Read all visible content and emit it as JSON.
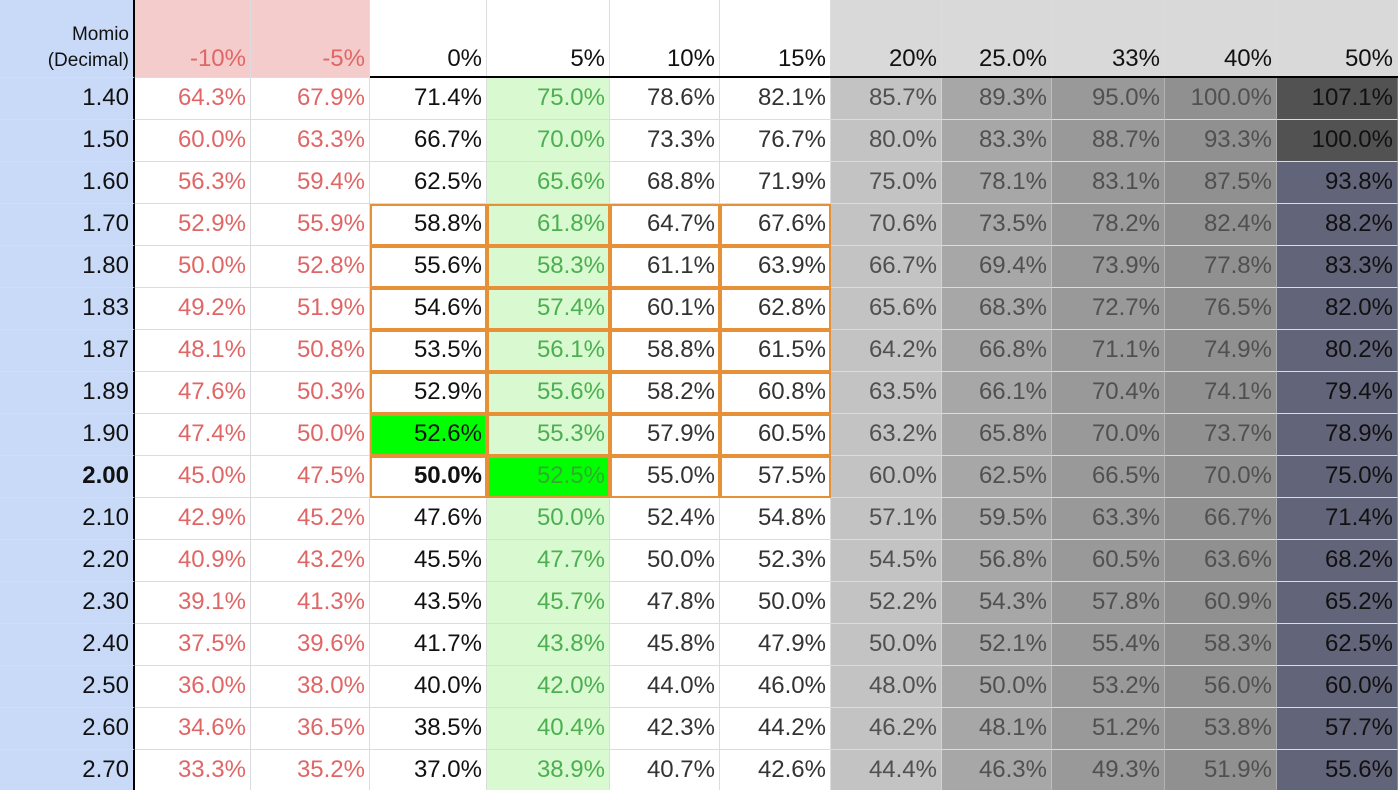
{
  "table": {
    "row_header_title": "Momio\n(Decimal)",
    "column_headers": [
      "-10%",
      "-5%",
      "0%",
      "5%",
      "10%",
      "15%",
      "20%",
      "25.0%",
      "33%",
      "40%",
      "50%"
    ],
    "rows": [
      {
        "odds": "1.40",
        "values": [
          "64.3%",
          "67.9%",
          "71.4%",
          "75.0%",
          "78.6%",
          "82.1%",
          "85.7%",
          "89.3%",
          "95.0%",
          "100.0%",
          "107.1%"
        ]
      },
      {
        "odds": "1.50",
        "values": [
          "60.0%",
          "63.3%",
          "66.7%",
          "70.0%",
          "73.3%",
          "76.7%",
          "80.0%",
          "83.3%",
          "88.7%",
          "93.3%",
          "100.0%"
        ]
      },
      {
        "odds": "1.60",
        "values": [
          "56.3%",
          "59.4%",
          "62.5%",
          "65.6%",
          "68.8%",
          "71.9%",
          "75.0%",
          "78.1%",
          "83.1%",
          "87.5%",
          "93.8%"
        ]
      },
      {
        "odds": "1.70",
        "values": [
          "52.9%",
          "55.9%",
          "58.8%",
          "61.8%",
          "64.7%",
          "67.6%",
          "70.6%",
          "73.5%",
          "78.2%",
          "82.4%",
          "88.2%"
        ]
      },
      {
        "odds": "1.80",
        "values": [
          "50.0%",
          "52.8%",
          "55.6%",
          "58.3%",
          "61.1%",
          "63.9%",
          "66.7%",
          "69.4%",
          "73.9%",
          "77.8%",
          "83.3%"
        ]
      },
      {
        "odds": "1.83",
        "values": [
          "49.2%",
          "51.9%",
          "54.6%",
          "57.4%",
          "60.1%",
          "62.8%",
          "65.6%",
          "68.3%",
          "72.7%",
          "76.5%",
          "82.0%"
        ]
      },
      {
        "odds": "1.87",
        "values": [
          "48.1%",
          "50.8%",
          "53.5%",
          "56.1%",
          "58.8%",
          "61.5%",
          "64.2%",
          "66.8%",
          "71.1%",
          "74.9%",
          "80.2%"
        ]
      },
      {
        "odds": "1.89",
        "values": [
          "47.6%",
          "50.3%",
          "52.9%",
          "55.6%",
          "58.2%",
          "60.8%",
          "63.5%",
          "66.1%",
          "70.4%",
          "74.1%",
          "79.4%"
        ]
      },
      {
        "odds": "1.90",
        "values": [
          "47.4%",
          "50.0%",
          "52.6%",
          "55.3%",
          "57.9%",
          "60.5%",
          "63.2%",
          "65.8%",
          "70.0%",
          "73.7%",
          "78.9%"
        ]
      },
      {
        "odds": "2.00",
        "values": [
          "45.0%",
          "47.5%",
          "50.0%",
          "52.5%",
          "55.0%",
          "57.5%",
          "60.0%",
          "62.5%",
          "66.5%",
          "70.0%",
          "75.0%"
        ]
      },
      {
        "odds": "2.10",
        "values": [
          "42.9%",
          "45.2%",
          "47.6%",
          "50.0%",
          "52.4%",
          "54.8%",
          "57.1%",
          "59.5%",
          "63.3%",
          "66.7%",
          "71.4%"
        ]
      },
      {
        "odds": "2.20",
        "values": [
          "40.9%",
          "43.2%",
          "45.5%",
          "47.7%",
          "50.0%",
          "52.3%",
          "54.5%",
          "56.8%",
          "60.5%",
          "63.6%",
          "68.2%"
        ]
      },
      {
        "odds": "2.30",
        "values": [
          "39.1%",
          "41.3%",
          "43.5%",
          "45.7%",
          "47.8%",
          "50.0%",
          "52.2%",
          "54.3%",
          "57.8%",
          "60.9%",
          "65.2%"
        ]
      },
      {
        "odds": "2.40",
        "values": [
          "37.5%",
          "39.6%",
          "41.7%",
          "43.8%",
          "45.8%",
          "47.9%",
          "50.0%",
          "52.1%",
          "55.4%",
          "58.3%",
          "62.5%"
        ]
      },
      {
        "odds": "2.50",
        "values": [
          "36.0%",
          "38.0%",
          "40.0%",
          "42.0%",
          "44.0%",
          "46.0%",
          "48.0%",
          "50.0%",
          "53.2%",
          "56.0%",
          "60.0%"
        ]
      },
      {
        "odds": "2.60",
        "values": [
          "34.6%",
          "36.5%",
          "38.5%",
          "40.4%",
          "42.3%",
          "44.2%",
          "46.2%",
          "48.1%",
          "51.2%",
          "53.8%",
          "57.7%"
        ]
      },
      {
        "odds": "2.70",
        "values": [
          "33.3%",
          "35.2%",
          "37.0%",
          "38.9%",
          "40.7%",
          "42.6%",
          "44.4%",
          "46.3%",
          "49.3%",
          "51.9%",
          "55.6%"
        ]
      }
    ],
    "bold_odds_row": 9,
    "highlighted_cells": [
      {
        "row": 8,
        "col": 2,
        "color": "#00ff00"
      },
      {
        "row": 9,
        "col": 3,
        "color": "#00ff00"
      }
    ],
    "outlined_block": {
      "row_start": 3,
      "row_end": 9,
      "col_start": 2,
      "col_end": 5,
      "color": "#e69138"
    },
    "colors": {
      "row_header_bg": "#c9daf8",
      "neg_header_bg": "#f4cccc",
      "neg_text": "#e06666",
      "green_col_bg": "#d9fad1",
      "green_text": "#4caf50",
      "plain_text": "#111111",
      "gray_header_bg": "#d9d9d9",
      "gray_levels": [
        "#c3c3c3",
        "#a7a7a7",
        "#999999",
        "#909090"
      ],
      "gray_text": "#505050",
      "last_col_bg": "#62657a",
      "last_col_top_bg": "#525252",
      "last_col_text": "#111111"
    }
  }
}
